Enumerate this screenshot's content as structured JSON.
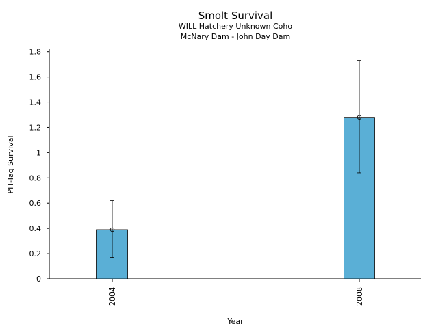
{
  "chart_data": {
    "type": "bar",
    "title": "Smolt Survival",
    "subtitle_lines": [
      "WILL Hatchery Unknown Coho",
      "McNary Dam - John Day Dam"
    ],
    "xlabel": "Year",
    "ylabel": "PIT-Tag Survival",
    "categories": [
      "2004",
      "2008"
    ],
    "values": [
      0.39,
      1.28
    ],
    "error_low": [
      0.17,
      0.84
    ],
    "error_high": [
      0.62,
      1.73
    ],
    "ylim": [
      0,
      1.82
    ],
    "yticks": [
      0,
      0.2,
      0.4,
      0.6,
      0.8,
      1,
      1.2,
      1.4,
      1.6,
      1.8
    ],
    "ytick_labels": [
      "0",
      "0.2",
      "0.4",
      "0.6",
      "0.8",
      "1",
      "1.2",
      "1.4",
      "1.6",
      "1.8"
    ],
    "grid": false,
    "bar_color": "#5aafd6"
  }
}
